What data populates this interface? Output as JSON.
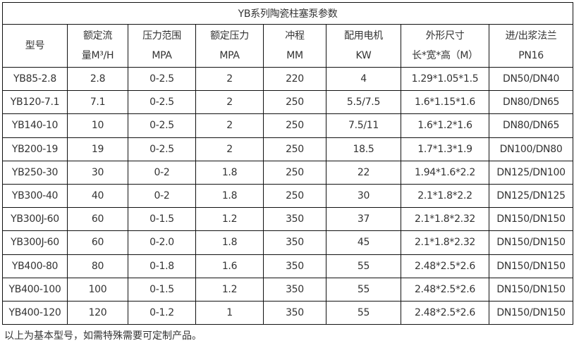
{
  "title": "YB系列陶瓷柱塞泵参数",
  "headers": [
    {
      "l1": "型号",
      "l2": ""
    },
    {
      "l1": "额定流",
      "l2": "量M³/H"
    },
    {
      "l1": "压力范围",
      "l2": "MPA"
    },
    {
      "l1": "额定压力",
      "l2": "MPA"
    },
    {
      "l1": "冲程",
      "l2": "MM"
    },
    {
      "l1": "配用电机",
      "l2": "KW"
    },
    {
      "l1": "外形尺寸",
      "l2": "长*宽*高（M）"
    },
    {
      "l1": "进/出浆法兰",
      "l2": "PN16"
    }
  ],
  "rows": [
    [
      "YB85-2.8",
      "2.8",
      "0-2.5",
      "2",
      "220",
      "4",
      "1.29*1.05*1.5",
      "DN50/DN40"
    ],
    [
      "YB120-7.1",
      "7.1",
      "0-2.5",
      "2",
      "250",
      "5.5/7.5",
      "1.6*1.15*1.6",
      "DN80/DN65"
    ],
    [
      "YB140-10",
      "10",
      "0-2.5",
      "2",
      "250",
      "7.5/11",
      "1.6*1.2*1.6",
      "DN80/DN65"
    ],
    [
      "YB200-19",
      "19",
      "0-2.5",
      "2",
      "250",
      "18.5",
      "1.7*1.3*1.9",
      "DN100/DN80"
    ],
    [
      "YB250-30",
      "30",
      "0-2",
      "1.8",
      "250",
      "22",
      "1.94*1.6*2.2",
      "DN125/DN100"
    ],
    [
      "YB300-40",
      "40",
      "0-2",
      "1.8",
      "250",
      "30",
      "2.1*1.8*2.2",
      "DN125/DN125"
    ],
    [
      "YB300J-60",
      "60",
      "0-1.5",
      "1.2",
      "350",
      "37",
      "2.1*1.8*2.32",
      "DN150/DN150"
    ],
    [
      "YB300J-60",
      "60",
      "0-2.0",
      "1.8",
      "350",
      "45",
      "2.1*1.8*2.32",
      "DN150/DN150"
    ],
    [
      "YB400-80",
      "80",
      "0-1.8",
      "1.6",
      "350",
      "55",
      "2.48*2.5*2.6",
      "DN150/DN150"
    ],
    [
      "YB400-100",
      "100",
      "0-1.5",
      "1.2",
      "350",
      "55",
      "2.48*2.5*2.6",
      "DN150/DN150"
    ],
    [
      "YB400-120",
      "120",
      "0-1.2",
      "1",
      "350",
      "55",
      "2.48*2.5*2.6",
      "DN150/DN150"
    ]
  ],
  "note": "以上为基本型号，如需特殊需要可定制产品。"
}
